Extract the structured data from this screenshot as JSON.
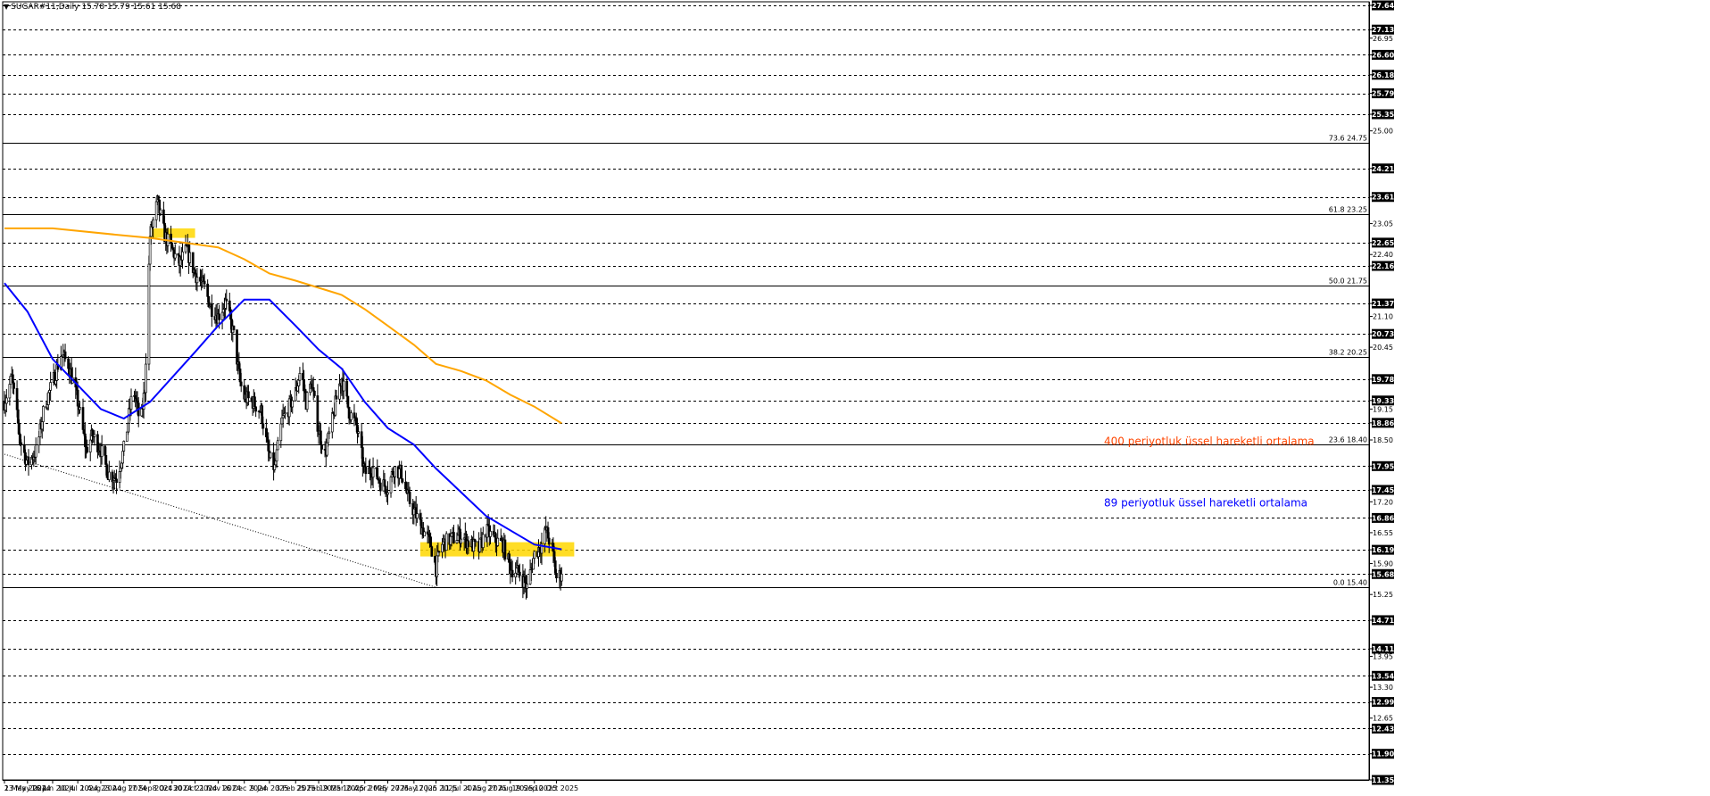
{
  "header": {
    "symbol_line": "SUGAR#11,Daily  15.78 15.79 15.61 15.68"
  },
  "colors": {
    "background": "#ffffff",
    "candles": "#000000",
    "ema89": "#0000ff",
    "ema400": "#ffa500",
    "ema400_label": "#ff4500",
    "zone": "#ffd700",
    "current_price_label_bg": "#000000"
  },
  "chart_data": {
    "type": "candlestick",
    "title": "",
    "xlabel": "",
    "ylabel": "",
    "ylim": [
      11.35,
      27.64
    ],
    "grid": false,
    "x_ticks": [
      "1 May 2024",
      "23 May 2024",
      "16 Jun 2024",
      "10 Jul 2024",
      "1 Aug 2024",
      "23 Aug 2024",
      "17 Sep 2024",
      "8 Oct 2024",
      "30 Oct 2024",
      "21 Nov 2024",
      "16 Dec 2024",
      "9 Jan 2025",
      "3 Feb 2025",
      "25 Feb 2025",
      "19 Mar 2025",
      "10 Apr 2025",
      "2 May 2025",
      "27 May 2025",
      "17 Jun 2025",
      "11 Jul 2025",
      "4 Aug 2025",
      "27 Aug 2025",
      "19 Sep 2025",
      "10 Oct 2025"
    ],
    "price_axis_labels": [
      {
        "text": "27.64",
        "value": 27.64,
        "boxed": true
      },
      {
        "text": "27.13",
        "value": 27.13,
        "boxed": true
      },
      {
        "text": "26.95",
        "value": 26.95,
        "boxed": false
      },
      {
        "text": "26.60",
        "value": 26.6,
        "boxed": true
      },
      {
        "text": "26.18",
        "value": 26.18,
        "boxed": true
      },
      {
        "text": "25.79",
        "value": 25.79,
        "boxed": true
      },
      {
        "text": "25.35",
        "value": 25.35,
        "boxed": true
      },
      {
        "text": "25.00",
        "value": 25.0,
        "boxed": false
      },
      {
        "text": "24.21",
        "value": 24.21,
        "boxed": true
      },
      {
        "text": "23.61",
        "value": 23.61,
        "boxed": true
      },
      {
        "text": "23.05",
        "value": 23.05,
        "boxed": false
      },
      {
        "text": "22.65",
        "value": 22.65,
        "boxed": true
      },
      {
        "text": "22.40",
        "value": 22.4,
        "boxed": false
      },
      {
        "text": "22.16",
        "value": 22.16,
        "boxed": true
      },
      {
        "text": "21.37",
        "value": 21.37,
        "boxed": true
      },
      {
        "text": "21.10",
        "value": 21.1,
        "boxed": false
      },
      {
        "text": "20.73",
        "value": 20.73,
        "boxed": true
      },
      {
        "text": "20.45",
        "value": 20.45,
        "boxed": false
      },
      {
        "text": "19.78",
        "value": 19.78,
        "boxed": true
      },
      {
        "text": "19.33",
        "value": 19.33,
        "boxed": true
      },
      {
        "text": "19.15",
        "value": 19.15,
        "boxed": false
      },
      {
        "text": "18.86",
        "value": 18.86,
        "boxed": true
      },
      {
        "text": "18.50",
        "value": 18.5,
        "boxed": false
      },
      {
        "text": "17.95",
        "value": 17.95,
        "boxed": true
      },
      {
        "text": "17.45",
        "value": 17.45,
        "boxed": true
      },
      {
        "text": "17.20",
        "value": 17.2,
        "boxed": false
      },
      {
        "text": "16.86",
        "value": 16.86,
        "boxed": true
      },
      {
        "text": "16.55",
        "value": 16.55,
        "boxed": false
      },
      {
        "text": "16.19",
        "value": 16.19,
        "boxed": true
      },
      {
        "text": "15.90",
        "value": 15.9,
        "boxed": false
      },
      {
        "text": "15.68",
        "value": 15.68,
        "boxed": true,
        "current": true
      },
      {
        "text": "15.25",
        "value": 15.25,
        "boxed": false
      },
      {
        "text": "14.71",
        "value": 14.71,
        "boxed": true
      },
      {
        "text": "14.11",
        "value": 14.11,
        "boxed": true
      },
      {
        "text": "13.95",
        "value": 13.95,
        "boxed": false
      },
      {
        "text": "13.54",
        "value": 13.54,
        "boxed": true
      },
      {
        "text": "13.30",
        "value": 13.3,
        "boxed": false
      },
      {
        "text": "12.99",
        "value": 12.99,
        "boxed": true
      },
      {
        "text": "12.65",
        "value": 12.65,
        "boxed": false
      },
      {
        "text": "12.43",
        "value": 12.43,
        "boxed": true
      },
      {
        "text": "11.90",
        "value": 11.9,
        "boxed": true
      },
      {
        "text": "11.35",
        "value": 11.35,
        "boxed": true
      }
    ],
    "dashed_levels": [
      27.64,
      27.13,
      26.6,
      26.18,
      25.79,
      25.35,
      24.21,
      23.61,
      22.65,
      22.16,
      21.37,
      20.73,
      19.78,
      19.33,
      18.86,
      17.95,
      17.45,
      16.86,
      16.19,
      15.68,
      14.71,
      14.11,
      13.54,
      12.99,
      12.43,
      11.9,
      11.35
    ],
    "fibonacci_levels": [
      {
        "label": "73.6 24.75",
        "value": 24.75
      },
      {
        "label": "61.8 23.25",
        "value": 23.25
      },
      {
        "label": "50.0 21.75",
        "value": 21.75
      },
      {
        "label": "38.2 20.25",
        "value": 20.25
      },
      {
        "label": "23.6 18.40",
        "value": 18.4
      },
      {
        "label": "0.0 15.40",
        "value": 15.4
      }
    ],
    "annotations": [
      {
        "text": "400 periyotluk üssel hareketli ortalama",
        "series": "ema400"
      },
      {
        "text": "89 periyotluk üssel hareketli ortalama",
        "series": "ema89"
      }
    ],
    "zones": [
      {
        "from": "17 Sep 2024",
        "to": "30 Oct 2024",
        "low": 22.75,
        "high": 22.95
      },
      {
        "from": "2 Jun 2025",
        "to": "27 Oct 2025",
        "low": 16.05,
        "high": 16.35
      }
    ],
    "trendline": {
      "points": [
        [
          "1 May 2024",
          18.2
        ],
        [
          "17 Jun 2025",
          15.4
        ]
      ],
      "style": "dotted"
    },
    "series": [
      {
        "name": "ema89",
        "points": [
          [
            "1 May 2024",
            21.8
          ],
          [
            "23 May 2024",
            21.2
          ],
          [
            "16 Jun 2024",
            20.2
          ],
          [
            "1 Aug 2024",
            19.15
          ],
          [
            "23 Aug 2024",
            18.95
          ],
          [
            "17 Sep 2024",
            19.3
          ],
          [
            "30 Oct 2024",
            20.35
          ],
          [
            "21 Nov 2024",
            20.9
          ],
          [
            "16 Dec 2024",
            21.45
          ],
          [
            "9 Jan 2025",
            21.45
          ],
          [
            "3 Feb 2025",
            20.9
          ],
          [
            "25 Feb 2025",
            20.4
          ],
          [
            "19 Mar 2025",
            20.0
          ],
          [
            "10 Apr 2025",
            19.3
          ],
          [
            "2 May 2025",
            18.75
          ],
          [
            "27 May 2025",
            18.4
          ],
          [
            "17 Jun 2025",
            17.9
          ],
          [
            "11 Jul 2025",
            17.4
          ],
          [
            "4 Aug 2025",
            16.9
          ],
          [
            "27 Aug 2025",
            16.6
          ],
          [
            "19 Sep 2025",
            16.3
          ],
          [
            "10 Oct 2025",
            16.22
          ],
          [
            "15 Oct 2025",
            16.2
          ]
        ]
      },
      {
        "name": "ema400",
        "points": [
          [
            "1 May 2024",
            22.95
          ],
          [
            "16 Jun 2024",
            22.95
          ],
          [
            "23 Aug 2024",
            22.8
          ],
          [
            "17 Sep 2024",
            22.75
          ],
          [
            "21 Nov 2024",
            22.55
          ],
          [
            "16 Dec 2024",
            22.3
          ],
          [
            "9 Jan 2025",
            22.0
          ],
          [
            "3 Feb 2025",
            21.85
          ],
          [
            "25 Feb 2025",
            21.7
          ],
          [
            "19 Mar 2025",
            21.55
          ],
          [
            "10 Apr 2025",
            21.25
          ],
          [
            "2 May 2025",
            20.9
          ],
          [
            "27 May 2025",
            20.5
          ],
          [
            "17 Jun 2025",
            20.1
          ],
          [
            "11 Jul 2025",
            19.95
          ],
          [
            "4 Aug 2025",
            19.75
          ],
          [
            "27 Aug 2025",
            19.45
          ],
          [
            "19 Sep 2025",
            19.2
          ],
          [
            "15 Oct 2025",
            18.85
          ]
        ]
      }
    ],
    "price_path": [
      [
        "1 May 2024",
        19.3
      ],
      [
        "8 May 2024",
        19.8
      ],
      [
        "16 May 2024",
        18.5
      ],
      [
        "23 May 2024",
        18.0
      ],
      [
        "1 Jun 2024",
        18.3
      ],
      [
        "8 Jun 2024",
        19.2
      ],
      [
        "16 Jun 2024",
        19.7
      ],
      [
        "24 Jun 2024",
        20.3
      ],
      [
        "1 Jul 2024",
        20.1
      ],
      [
        "10 Jul 2024",
        19.3
      ],
      [
        "18 Jul 2024",
        18.3
      ],
      [
        "24 Jul 2024",
        18.6
      ],
      [
        "1 Aug 2024",
        18.3
      ],
      [
        "8 Aug 2024",
        17.8
      ],
      [
        "16 Aug 2024",
        17.7
      ],
      [
        "23 Aug 2024",
        18.3
      ],
      [
        "1 Sep 2024",
        19.6
      ],
      [
        "8 Sep 2024",
        18.8
      ],
      [
        "12 Sep 2024",
        19.6
      ],
      [
        "15 Sep 2024",
        21.5
      ],
      [
        "17 Sep 2024",
        22.8
      ],
      [
        "24 Sep 2024",
        23.5
      ],
      [
        "1 Oct 2024",
        22.8
      ],
      [
        "8 Oct 2024",
        22.5
      ],
      [
        "15 Oct 2024",
        22.2
      ],
      [
        "22 Oct 2024",
        22.5
      ],
      [
        "30 Oct 2024",
        22.0
      ],
      [
        "8 Nov 2024",
        21.7
      ],
      [
        "14 Nov 2024",
        21.3
      ],
      [
        "21 Nov 2024",
        21.1
      ],
      [
        "28 Nov 2024",
        21.4
      ],
      [
        "6 Dec 2024",
        20.7
      ],
      [
        "12 Dec 2024",
        19.7
      ],
      [
        "16 Dec 2024",
        19.4
      ],
      [
        "24 Dec 2024",
        19.3
      ],
      [
        "1 Jan 2025",
        19.1
      ],
      [
        "9 Jan 2025",
        18.1
      ],
      [
        "14 Jan 2025",
        17.9
      ],
      [
        "21 Jan 2025",
        18.9
      ],
      [
        "28 Jan 2025",
        19.2
      ],
      [
        "3 Feb 2025",
        19.5
      ],
      [
        "8 Feb 2025",
        20.0
      ],
      [
        "13 Feb 2025",
        19.3
      ],
      [
        "18 Feb 2025",
        19.7
      ],
      [
        "25 Feb 2025",
        18.7
      ],
      [
        "3 Mar 2025",
        18.2
      ],
      [
        "10 Mar 2025",
        18.9
      ],
      [
        "16 Mar 2025",
        19.6
      ],
      [
        "19 Mar 2025",
        19.8
      ],
      [
        "26 Mar 2025",
        19.1
      ],
      [
        "2 Apr 2025",
        18.8
      ],
      [
        "10 Apr 2025",
        17.8
      ],
      [
        "18 Apr 2025",
        17.9
      ],
      [
        "25 Apr 2025",
        17.6
      ],
      [
        "2 May 2025",
        17.5
      ],
      [
        "8 May 2025",
        17.9
      ],
      [
        "15 May 2025",
        17.8
      ],
      [
        "21 May 2025",
        17.3
      ],
      [
        "27 May 2025",
        17.0
      ],
      [
        "5 Jun 2025",
        16.6
      ],
      [
        "12 Jun 2025",
        16.3
      ],
      [
        "17 Jun 2025",
        15.8
      ],
      [
        "22 Jun 2025",
        16.3
      ],
      [
        "30 Jun 2025",
        16.4
      ],
      [
        "11 Jul 2025",
        16.5
      ],
      [
        "20 Jul 2025",
        16.3
      ],
      [
        "28 Jul 2025",
        16.2
      ],
      [
        "4 Aug 2025",
        16.6
      ],
      [
        "12 Aug 2025",
        16.4
      ],
      [
        "20 Aug 2025",
        16.3
      ],
      [
        "27 Aug 2025",
        15.8
      ],
      [
        "5 Sep 2025",
        15.7
      ],
      [
        "12 Sep 2025",
        15.4
      ],
      [
        "19 Sep 2025",
        16.1
      ],
      [
        "26 Sep 2025",
        16.3
      ],
      [
        "30 Sep 2025",
        16.6
      ],
      [
        "6 Oct 2025",
        16.2
      ],
      [
        "10 Oct 2025",
        15.6
      ],
      [
        "15 Oct 2025",
        15.68
      ]
    ]
  }
}
